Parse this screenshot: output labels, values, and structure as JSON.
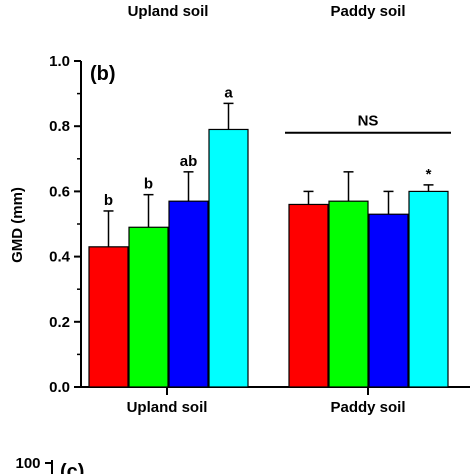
{
  "header_cutoff_labels": [
    "Upland soil",
    "Paddy soil"
  ],
  "footer_cutoff": {
    "tick_label": "100",
    "panel_label": "(c)"
  },
  "chart_data": {
    "type": "bar",
    "panel_label": "(b)",
    "ylabel": "GMD (mm)",
    "ylim": [
      0.0,
      1.0
    ],
    "yticks": [
      "0.0",
      "0.2",
      "0.4",
      "0.6",
      "0.8",
      "1.0"
    ],
    "groups": [
      "Upland soil",
      "Paddy soil"
    ],
    "series_colors": [
      "#ff0000",
      "#00ff00",
      "#0000ff",
      "#00ffff"
    ],
    "bars": [
      {
        "group": 0,
        "value": 0.43,
        "error": 0.11,
        "label": "b",
        "color": "#ff0000"
      },
      {
        "group": 0,
        "value": 0.49,
        "error": 0.1,
        "label": "b",
        "color": "#00ff00"
      },
      {
        "group": 0,
        "value": 0.57,
        "error": 0.09,
        "label": "ab",
        "color": "#0000ff"
      },
      {
        "group": 0,
        "value": 0.79,
        "error": 0.08,
        "label": "a",
        "color": "#00ffff"
      },
      {
        "group": 1,
        "value": 0.56,
        "error": 0.04,
        "label": "",
        "color": "#ff0000"
      },
      {
        "group": 1,
        "value": 0.57,
        "error": 0.09,
        "label": "",
        "color": "#00ff00"
      },
      {
        "group": 1,
        "value": 0.53,
        "error": 0.07,
        "label": "",
        "color": "#0000ff"
      },
      {
        "group": 1,
        "value": 0.6,
        "error": 0.02,
        "label": "*",
        "color": "#00ffff"
      }
    ],
    "group_annotation": {
      "group": 1,
      "text": "NS",
      "y": 0.78
    },
    "grid": false,
    "legend": "none"
  }
}
